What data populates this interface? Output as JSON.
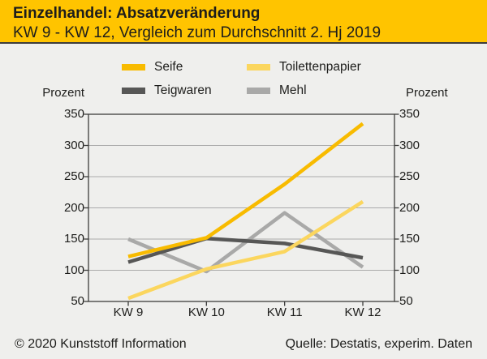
{
  "header": {
    "title": "Einzelhandel: Absatzveränderung",
    "subtitle": "KW 9 - KW 12, Vergleich zum Durchschnitt 2. Hj 2019"
  },
  "footer": {
    "copyright": "© 2020 Kunststoff Information",
    "source": "Quelle: Destatis, experim. Daten"
  },
  "colors": {
    "header_bg": "#FFC400",
    "bg": "#EFEFED",
    "text": "#1D1D1B",
    "frame": "#3C3C3B",
    "grid": "#ABABAB"
  },
  "chart_data": {
    "type": "line",
    "title": "Einzelhandel: Absatzveränderung, KW 9 - KW 12, Vergleich zum Durchschnitt 2. Hj 2019",
    "categories": [
      "KW 9",
      "KW 10",
      "KW 11",
      "KW 12"
    ],
    "series": [
      {
        "name": "Seife",
        "color": "#F8BB00",
        "values": [
          122,
          152,
          238,
          335
        ]
      },
      {
        "name": "Toilettenpapier",
        "color": "#FBD65E",
        "values": [
          55,
          102,
          130,
          210
        ]
      },
      {
        "name": "Teigwaren",
        "color": "#575756",
        "values": [
          113,
          151,
          143,
          120
        ]
      },
      {
        "name": "Mehl",
        "color": "#A9A9A8",
        "values": [
          150,
          98,
          192,
          105
        ]
      }
    ],
    "ylabel": "Prozent",
    "ylabel_right": "Prozent",
    "ylim": [
      50,
      350
    ],
    "yticks": [
      50,
      100,
      150,
      200,
      250,
      300,
      350
    ],
    "grid": true,
    "legend_position": "top"
  }
}
